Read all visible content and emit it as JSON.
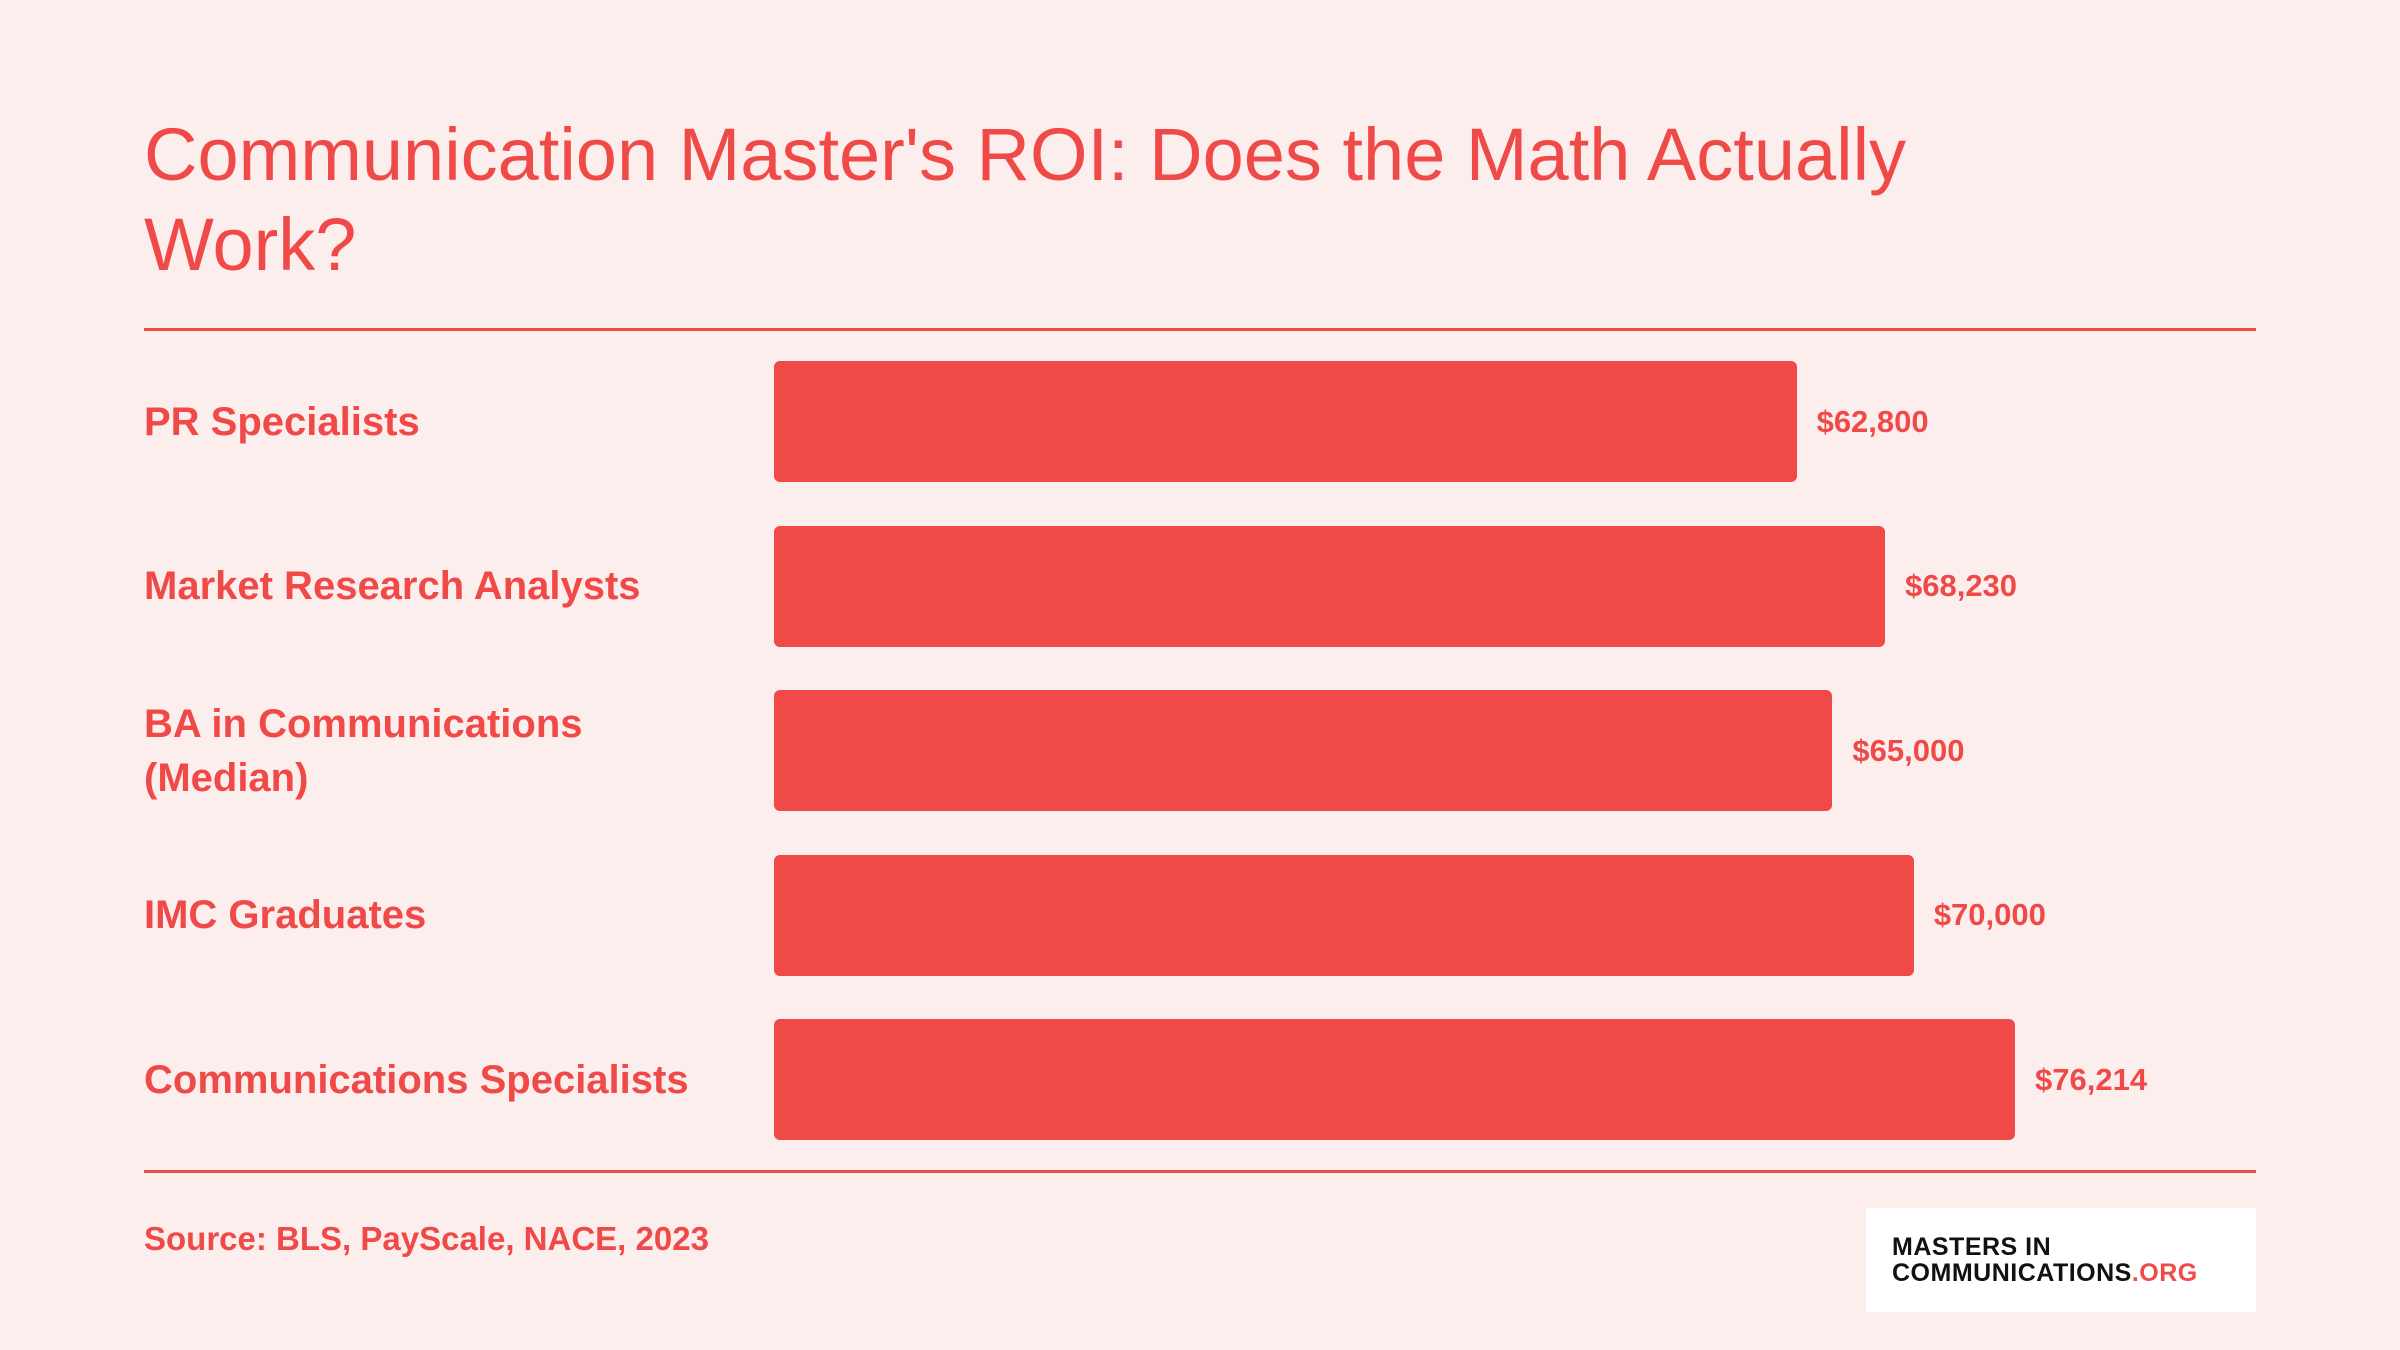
{
  "chart_data": {
    "type": "bar",
    "orientation": "horizontal",
    "title": "Communication Master's ROI: Does the Math Actually Work?",
    "categories": [
      "PR Specialists",
      "Market Research Analysts",
      "BA in Communications (Median)",
      "IMC Graduates",
      "Communications Specialists"
    ],
    "values": [
      62800,
      68230,
      65000,
      70000,
      76214
    ],
    "value_labels": [
      "$62,800",
      "$68,230",
      "$65,000",
      "$70,000",
      "$76,214"
    ],
    "color": "#ef4a47",
    "source": "Source: BLS, PayScale, NACE, 2023"
  },
  "logo": {
    "line1": "MASTERS IN",
    "line2": "COMMUNICATIONS",
    "suffix": ".ORG"
  }
}
